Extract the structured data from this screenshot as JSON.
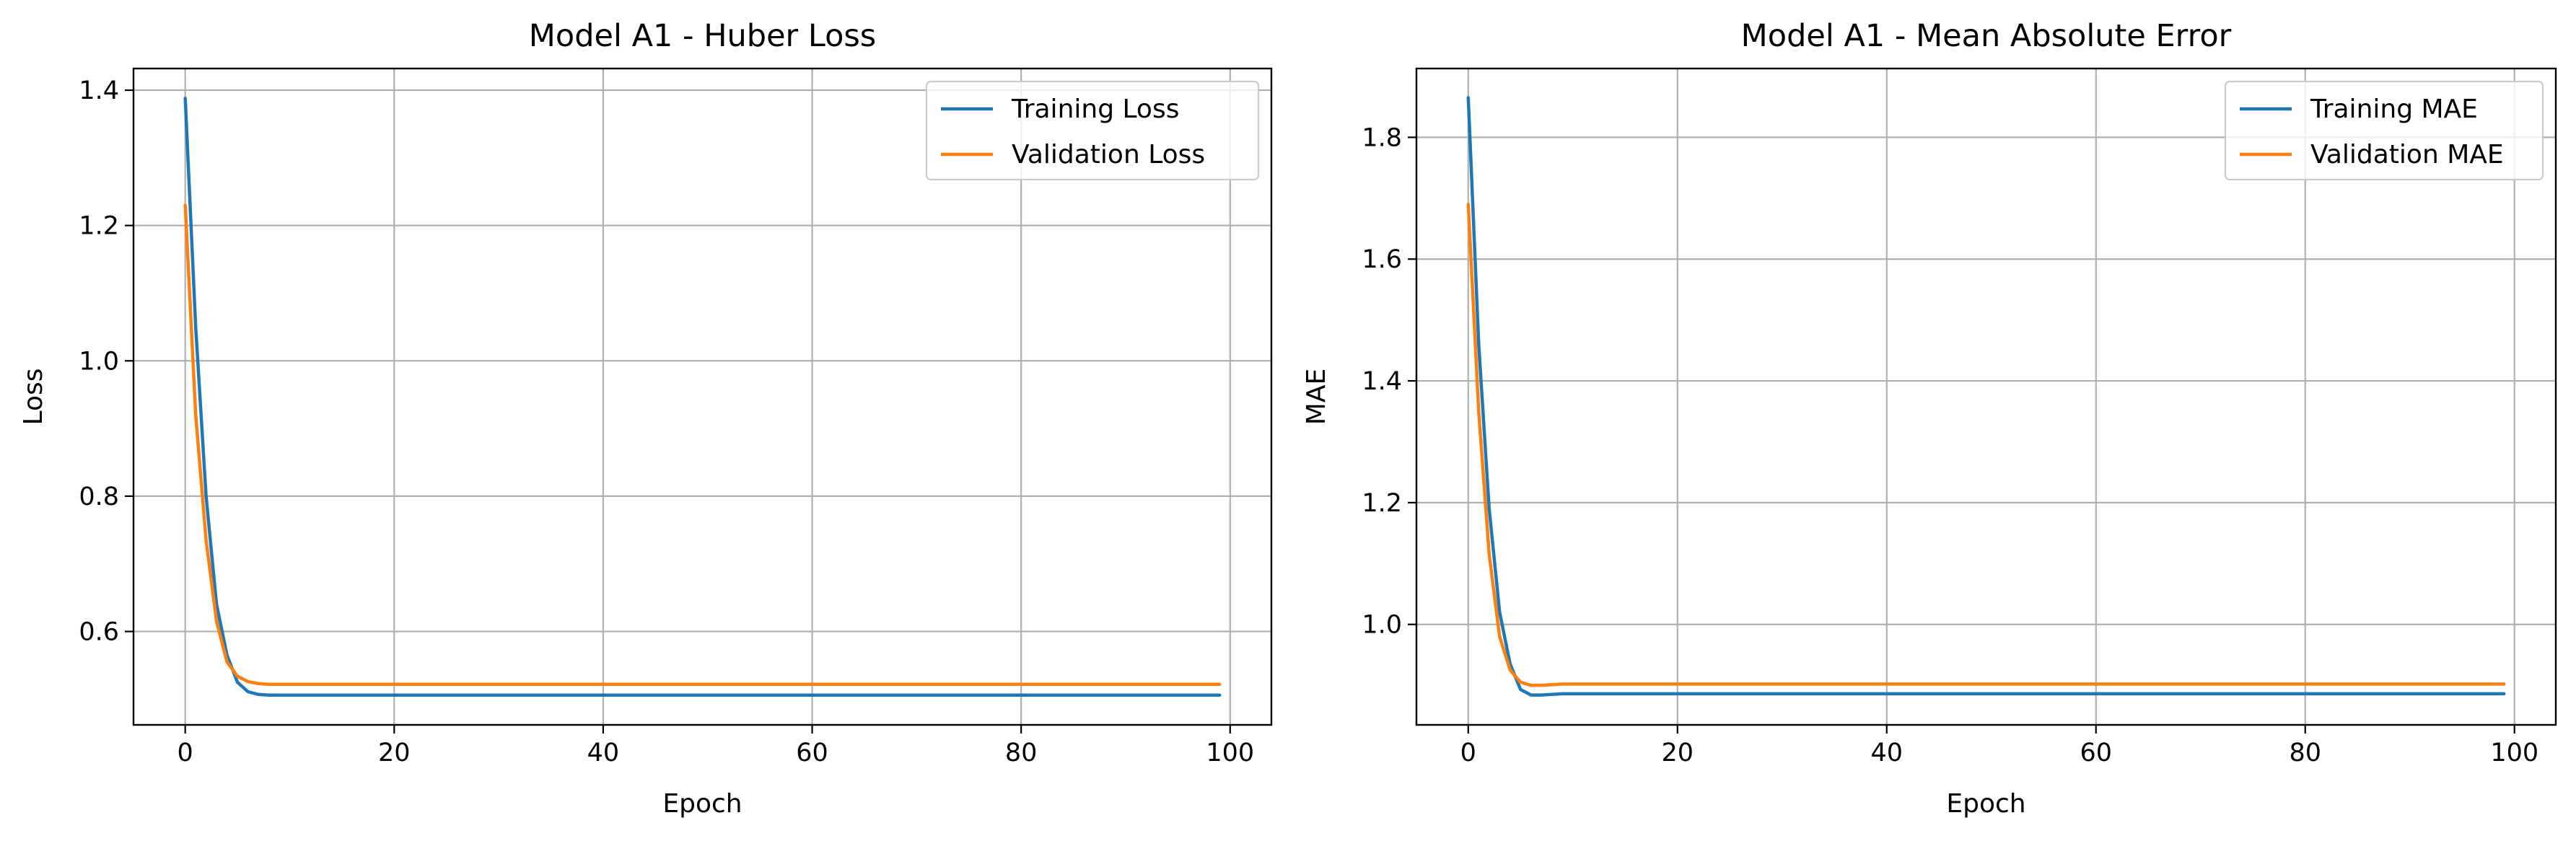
{
  "chart_data": [
    {
      "type": "line",
      "title": "Model A1 - Huber Loss",
      "xlabel": "Epoch",
      "ylabel": "Loss",
      "xlim": [
        -4.95,
        103.95
      ],
      "ylim": [
        0.462,
        1.432
      ],
      "xticks": [
        0,
        20,
        40,
        60,
        80,
        100
      ],
      "yticks": [
        0.6,
        0.8,
        1.0,
        1.2,
        1.4
      ],
      "xtick_labels": [
        "0",
        "20",
        "40",
        "60",
        "80",
        "100"
      ],
      "ytick_labels": [
        "0.6",
        "0.8",
        "1.0",
        "1.2",
        "1.4"
      ],
      "grid": true,
      "legend": "top-right",
      "series": [
        {
          "name": "Training Loss",
          "color": "#1f77b4",
          "x": [
            0,
            1,
            2,
            3,
            4,
            5,
            6,
            7,
            8,
            9,
            10,
            15,
            20,
            30,
            40,
            50,
            60,
            70,
            80,
            90,
            99
          ],
          "y": [
            1.388,
            1.05,
            0.8,
            0.64,
            0.565,
            0.525,
            0.511,
            0.507,
            0.506,
            0.506,
            0.506,
            0.506,
            0.506,
            0.506,
            0.506,
            0.506,
            0.506,
            0.506,
            0.506,
            0.506,
            0.506
          ]
        },
        {
          "name": "Validation Loss",
          "color": "#ff7f0e",
          "x": [
            0,
            1,
            2,
            3,
            4,
            5,
            6,
            7,
            8,
            9,
            10,
            15,
            20,
            30,
            40,
            50,
            60,
            70,
            80,
            90,
            99
          ],
          "y": [
            1.23,
            0.92,
            0.735,
            0.615,
            0.555,
            0.534,
            0.526,
            0.523,
            0.522,
            0.522,
            0.522,
            0.522,
            0.522,
            0.522,
            0.522,
            0.522,
            0.522,
            0.522,
            0.522,
            0.522,
            0.522
          ]
        }
      ]
    },
    {
      "type": "line",
      "title": "Model A1 - Mean Absolute Error",
      "xlabel": "Epoch",
      "ylabel": "MAE",
      "xlim": [
        -4.95,
        103.95
      ],
      "ylim": [
        0.835,
        1.913
      ],
      "xticks": [
        0,
        20,
        40,
        60,
        80,
        100
      ],
      "yticks": [
        1.0,
        1.2,
        1.4,
        1.6,
        1.8
      ],
      "xtick_labels": [
        "0",
        "20",
        "40",
        "60",
        "80",
        "100"
      ],
      "ytick_labels": [
        "1.0",
        "1.2",
        "1.4",
        "1.6",
        "1.8"
      ],
      "grid": true,
      "legend": "top-right",
      "series": [
        {
          "name": "Training MAE",
          "color": "#1f77b4",
          "x": [
            0,
            1,
            2,
            3,
            4,
            5,
            6,
            7,
            8,
            9,
            10,
            15,
            20,
            30,
            40,
            50,
            60,
            70,
            80,
            90,
            99
          ],
          "y": [
            1.865,
            1.46,
            1.19,
            1.02,
            0.935,
            0.893,
            0.884,
            0.884,
            0.885,
            0.886,
            0.886,
            0.886,
            0.886,
            0.886,
            0.886,
            0.886,
            0.886,
            0.886,
            0.886,
            0.886,
            0.886
          ]
        },
        {
          "name": "Validation MAE",
          "color": "#ff7f0e",
          "x": [
            0,
            1,
            2,
            3,
            4,
            5,
            6,
            7,
            8,
            9,
            10,
            15,
            20,
            30,
            40,
            50,
            60,
            70,
            80,
            90,
            99
          ],
          "y": [
            1.69,
            1.35,
            1.115,
            0.98,
            0.925,
            0.905,
            0.9,
            0.9,
            0.901,
            0.902,
            0.902,
            0.902,
            0.902,
            0.902,
            0.902,
            0.902,
            0.902,
            0.902,
            0.902,
            0.902,
            0.902
          ]
        }
      ]
    }
  ]
}
